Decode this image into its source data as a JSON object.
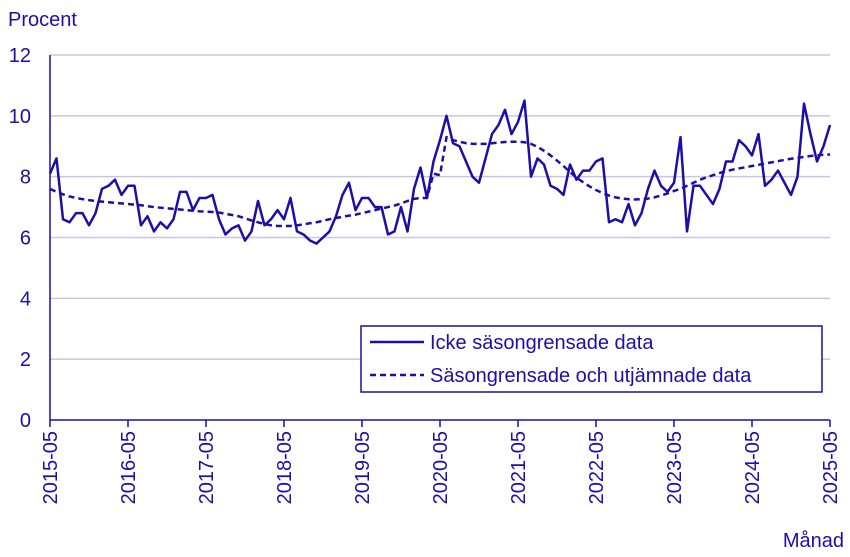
{
  "chart_data": {
    "type": "line",
    "ylabel": "Procent",
    "xlabel": "Månad",
    "ylim": [
      0,
      12
    ],
    "yticks": [
      "0",
      "2",
      "4",
      "6",
      "8",
      "10",
      "12"
    ],
    "xtick_labels": [
      "2015-05",
      "2016-05",
      "2017-05",
      "2018-05",
      "2019-05",
      "2020-05",
      "2021-05",
      "2022-05",
      "2023-05",
      "2024-05",
      "2025-05"
    ],
    "grid": true,
    "legend_position": "lower-right",
    "colors": {
      "series": "#1b0fa8",
      "grid": "#c9c5e2",
      "axis": "#1b0fa8"
    },
    "series": [
      {
        "name": "Icke säsongrensade data",
        "style": "solid",
        "values": [
          8.1,
          8.6,
          6.6,
          6.5,
          6.8,
          6.8,
          6.4,
          6.8,
          7.6,
          7.7,
          7.9,
          7.4,
          7.7,
          7.7,
          6.4,
          6.7,
          6.2,
          6.5,
          6.3,
          6.6,
          7.5,
          7.5,
          6.9,
          7.3,
          7.3,
          7.4,
          6.6,
          6.1,
          6.3,
          6.4,
          5.9,
          6.2,
          7.2,
          6.4,
          6.6,
          6.9,
          6.6,
          7.3,
          6.2,
          6.1,
          5.9,
          5.8,
          6.0,
          6.2,
          6.7,
          7.4,
          7.8,
          6.9,
          7.3,
          7.3,
          7.0,
          7.0,
          6.1,
          6.2,
          7.0,
          6.2,
          7.6,
          8.3,
          7.3,
          8.5,
          9.2,
          10.0,
          9.1,
          9.0,
          8.5,
          8.0,
          7.8,
          8.6,
          9.4,
          9.7,
          10.2,
          9.4,
          9.8,
          10.5,
          8.0,
          8.6,
          8.4,
          7.7,
          7.6,
          7.4,
          8.4,
          7.9,
          8.2,
          8.2,
          8.5,
          8.6,
          6.5,
          6.6,
          6.5,
          7.1,
          6.4,
          6.8,
          7.6,
          8.2,
          7.7,
          7.5,
          7.8,
          9.3,
          6.2,
          7.7,
          7.7,
          7.4,
          7.1,
          7.6,
          8.5,
          8.5,
          9.2,
          9.0,
          8.7,
          9.4,
          7.7,
          7.9,
          8.2,
          7.8,
          7.4,
          8.0,
          10.4,
          9.4,
          8.5,
          9.0,
          9.7
        ]
      },
      {
        "name": "Säsongrensade och utjämnade data",
        "style": "dashed",
        "values": [
          7.6,
          7.5,
          7.42,
          7.35,
          7.3,
          7.26,
          7.23,
          7.2,
          7.18,
          7.16,
          7.14,
          7.12,
          7.1,
          7.08,
          7.06,
          7.03,
          7.0,
          6.98,
          6.96,
          6.94,
          6.92,
          6.9,
          6.88,
          6.86,
          6.85,
          6.84,
          6.82,
          6.78,
          6.74,
          6.7,
          6.63,
          6.56,
          6.5,
          6.44,
          6.4,
          6.38,
          6.38,
          6.38,
          6.4,
          6.43,
          6.47,
          6.5,
          6.55,
          6.6,
          6.64,
          6.68,
          6.72,
          6.75,
          6.8,
          6.85,
          6.9,
          6.95,
          7.0,
          7.05,
          7.12,
          7.2,
          7.27,
          7.3,
          7.3,
          8.1,
          8.05,
          9.3,
          9.2,
          9.15,
          9.1,
          9.08,
          9.08,
          9.08,
          9.1,
          9.12,
          9.14,
          9.15,
          9.15,
          9.13,
          9.08,
          8.98,
          8.85,
          8.7,
          8.53,
          8.35,
          8.15,
          7.97,
          7.82,
          7.68,
          7.56,
          7.46,
          7.38,
          7.32,
          7.28,
          7.26,
          7.25,
          7.26,
          7.28,
          7.32,
          7.38,
          7.45,
          7.53,
          7.6,
          7.7,
          7.8,
          7.9,
          7.98,
          8.05,
          8.12,
          8.18,
          8.23,
          8.27,
          8.31,
          8.35,
          8.39,
          8.43,
          8.47,
          8.51,
          8.55,
          8.59,
          8.62,
          8.65,
          8.68,
          8.7,
          8.72,
          8.73
        ]
      }
    ]
  }
}
